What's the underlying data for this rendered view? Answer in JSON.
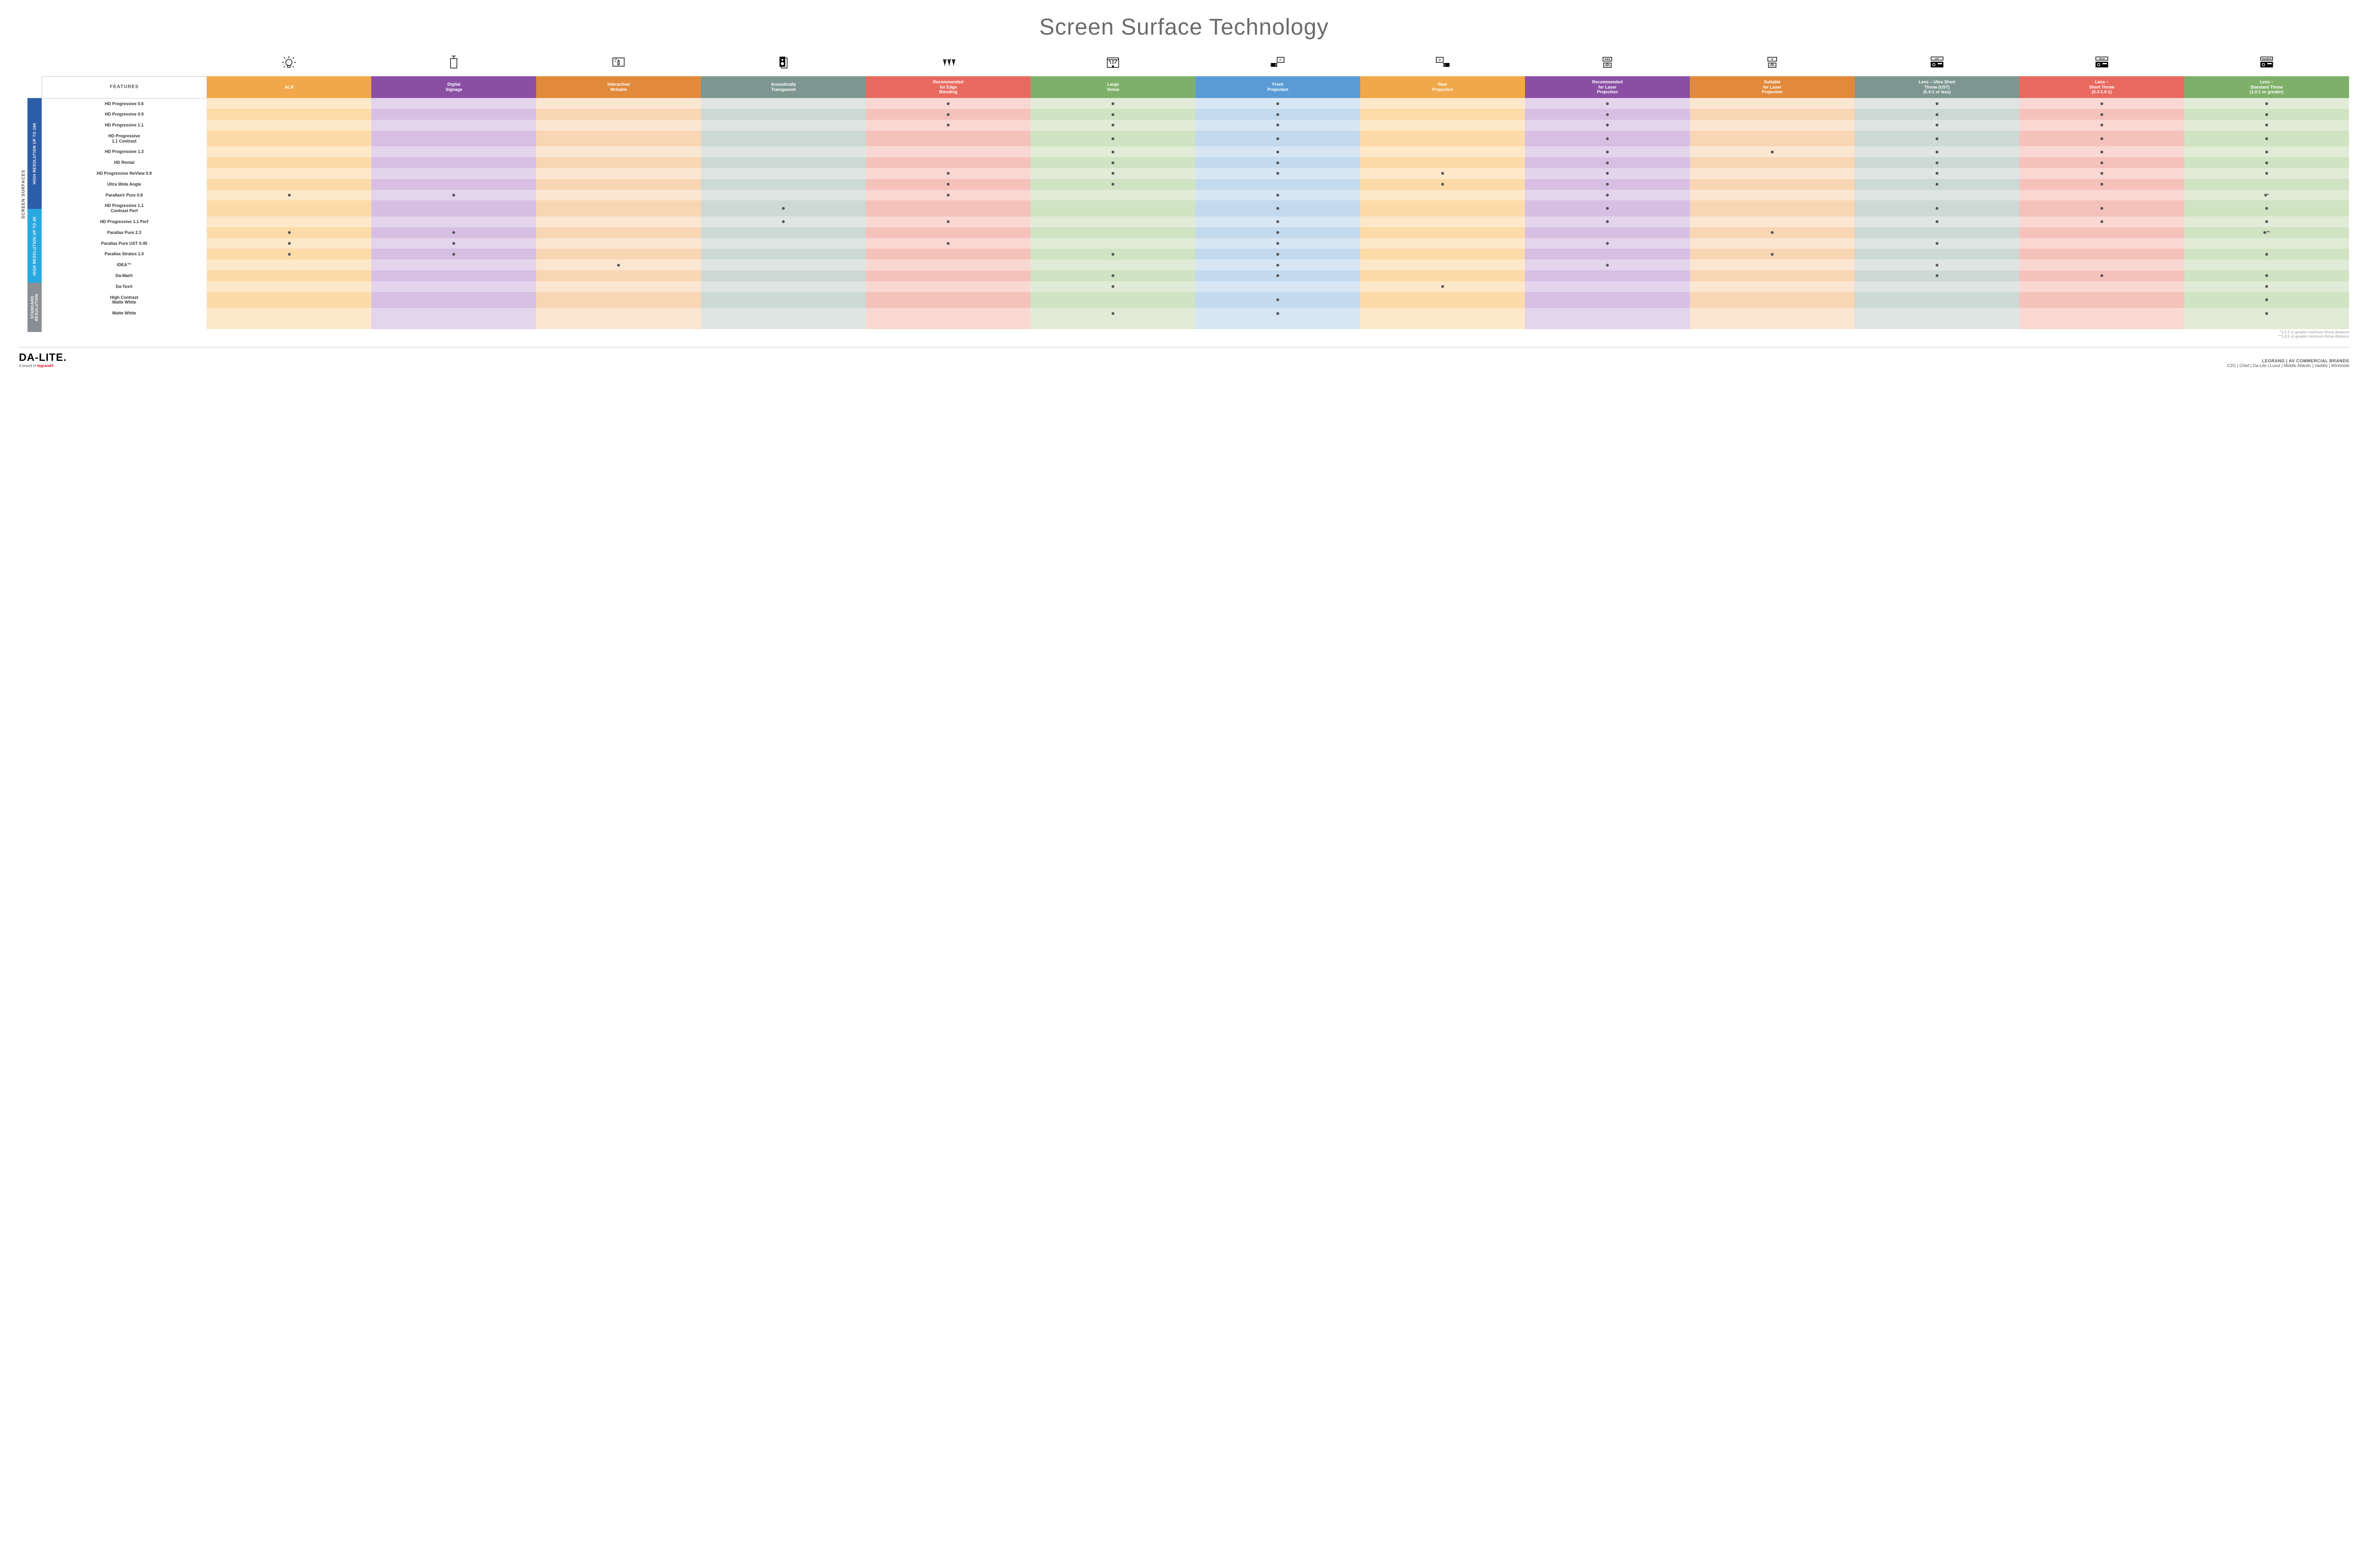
{
  "title": "Screen Surface Technology",
  "verticalLabel": "SCREEN SURFACES",
  "columns": [
    {
      "key": "features",
      "label": "FEATURES",
      "color": "#ffffff",
      "text": "#555",
      "lightA": "#ffffff",
      "lightB": "#ffffff",
      "icon": null
    },
    {
      "key": "alr",
      "label": "ALR",
      "color": "#f0a84a",
      "lightA": "#fde8c9",
      "lightB": "#fcdba8",
      "icon": "bulb"
    },
    {
      "key": "signage",
      "label": "Digital\nSignage",
      "color": "#8a4fa3",
      "lightA": "#e4d4ec",
      "lightB": "#d7bfe3",
      "icon": "signage"
    },
    {
      "key": "interactive",
      "label": "Interactive/\nWritable",
      "color": "#e18a3b",
      "lightA": "#fbe6d2",
      "lightB": "#f8d6b4",
      "icon": "touch"
    },
    {
      "key": "acoustic",
      "label": "Acoustically\nTransparent",
      "color": "#7e9690",
      "lightA": "#dee5e3",
      "lightB": "#cdd9d5",
      "icon": "speaker"
    },
    {
      "key": "edge",
      "label": "Recommended\nfor Edge\nBlending",
      "color": "#e86a5f",
      "lightA": "#f9d8d4",
      "lightB": "#f5c2bb",
      "icon": "blend"
    },
    {
      "key": "venue",
      "label": "Large\nVenue",
      "color": "#7fb069",
      "lightA": "#e0ecd7",
      "lightB": "#d0e3c2",
      "icon": "venue"
    },
    {
      "key": "front",
      "label": "Front\nProjection",
      "color": "#5b9bd5",
      "lightA": "#d8e6f4",
      "lightB": "#c3d9ee",
      "icon": "front"
    },
    {
      "key": "rear",
      "label": "Rear\nProjection",
      "color": "#f0a84a",
      "lightA": "#fde8c9",
      "lightB": "#fcdba8",
      "icon": "rear"
    },
    {
      "key": "reclaser",
      "label": "Recommended\nfor Laser\nProjection",
      "color": "#8a4fa3",
      "lightA": "#e4d4ec",
      "lightB": "#d7bfe3",
      "icon": "laser3"
    },
    {
      "key": "suitlaser",
      "label": "Suitable\nfor Laser\nProjection",
      "color": "#e18a3b",
      "lightA": "#fbe6d2",
      "lightB": "#f8d6b4",
      "icon": "laser1"
    },
    {
      "key": "ust",
      "label": "Lens – Ultra Short\nThrow (UST)\n(0.4:1 or less)",
      "color": "#7e9690",
      "lightA": "#dee5e3",
      "lightB": "#cdd9d5",
      "icon": "ust",
      "badge": "UST"
    },
    {
      "key": "short",
      "label": "Lens –\nShort Throw\n(0.4-1.0:1)",
      "color": "#e86a5f",
      "lightA": "#f9d8d4",
      "lightB": "#f5c2bb",
      "icon": "short",
      "badge": "Short"
    },
    {
      "key": "std",
      "label": "Lens –\nStandard Throw\n(1.0:1 or greater)",
      "color": "#7fb069",
      "lightA": "#e0ecd7",
      "lightB": "#d0e3c2",
      "icon": "standard",
      "badge": "Standard"
    }
  ],
  "groups": [
    {
      "label": "HIGH RESOLUTION UP TO 16K",
      "color": "#2f5da8",
      "rows": [
        {
          "label": "HD Progressive 0.6",
          "cells": {
            "edge": "•",
            "venue": "•",
            "front": "•",
            "reclaser": "•",
            "ust": "•",
            "short": "•",
            "std": "•"
          }
        },
        {
          "label": "HD Progressive 0.9",
          "cells": {
            "edge": "•",
            "venue": "•",
            "front": "•",
            "reclaser": "•",
            "ust": "•",
            "short": "•",
            "std": "•"
          }
        },
        {
          "label": "HD Progressive 1.1",
          "cells": {
            "edge": "•",
            "venue": "•",
            "front": "•",
            "reclaser": "•",
            "ust": "•",
            "short": "•",
            "std": "•"
          }
        },
        {
          "label": "HD Progressive\n1.1 Contrast",
          "cells": {
            "venue": "•",
            "front": "•",
            "reclaser": "•",
            "ust": "•",
            "short": "•",
            "std": "•"
          }
        },
        {
          "label": "HD Progressive 1.3",
          "cells": {
            "venue": "•",
            "front": "•",
            "reclaser": "•",
            "suitlaser": "•",
            "ust": "•",
            "short": "•",
            "std": "•"
          }
        },
        {
          "label": "HD Rental",
          "cells": {
            "venue": "•",
            "front": "•",
            "reclaser": "•",
            "ust": "•",
            "short": "•",
            "std": "•"
          }
        },
        {
          "label": "HD Progressive ReView 0.9",
          "cells": {
            "edge": "•",
            "venue": "•",
            "front": "•",
            "rear": "•",
            "reclaser": "•",
            "ust": "•",
            "short": "•",
            "std": "•"
          }
        },
        {
          "label": "Ultra Wide Angle",
          "cells": {
            "edge": "•",
            "venue": "•",
            "rear": "•",
            "reclaser": "•",
            "ust": "•",
            "short": "•"
          }
        },
        {
          "label": "Parallax® Pure 0.8",
          "cells": {
            "alr": "•",
            "signage": "•",
            "edge": "•",
            "front": "•",
            "reclaser": "•",
            "std": "•*"
          }
        }
      ]
    },
    {
      "label": "HIGH RESOLUTION UP TO 4K",
      "color": "#2aa9e0",
      "rows": [
        {
          "label": "HD Progressive 1.1\nContrast Perf",
          "cells": {
            "acoustic": "•",
            "front": "•",
            "reclaser": "•",
            "ust": "•",
            "short": "•",
            "std": "•"
          }
        },
        {
          "label": "HD Progressive 1.1 Perf",
          "cells": {
            "acoustic": "•",
            "edge": "•",
            "front": "•",
            "reclaser": "•",
            "ust": "•",
            "short": "•",
            "std": "•"
          }
        },
        {
          "label": "Parallax Pure 2.3",
          "cells": {
            "alr": "•",
            "signage": "•",
            "front": "•",
            "suitlaser": "•",
            "std": "•**"
          }
        },
        {
          "label": "Parallax Pure UST 0.45",
          "cells": {
            "alr": "•",
            "signage": "•",
            "edge": "•",
            "front": "•",
            "reclaser": "•",
            "ust": "•"
          }
        },
        {
          "label": "Parallax Stratos 1.0",
          "cells": {
            "alr": "•",
            "signage": "•",
            "venue": "•",
            "front": "•",
            "suitlaser": "•",
            "std": "•"
          }
        },
        {
          "label": "IDEA™",
          "cells": {
            "interactive": "•",
            "front": "•",
            "reclaser": "•",
            "ust": "•"
          }
        }
      ]
    },
    {
      "label": "STANDARD\nRESOLUTION",
      "color": "#8a8f94",
      "rows": [
        {
          "label": "Da-Mat®",
          "cells": {
            "venue": "•",
            "front": "•",
            "ust": "•",
            "short": "•",
            "std": "•"
          }
        },
        {
          "label": "Da-Tex®",
          "cells": {
            "venue": "•",
            "rear": "•",
            "std": "•"
          }
        },
        {
          "label": "High Contrast\nMatte White",
          "cells": {
            "front": "•",
            "std": "•"
          }
        },
        {
          "label": "Matte White",
          "cells": {
            "venue": "•",
            "front": "•",
            "std": "•"
          }
        }
      ]
    }
  ],
  "footnotes": [
    "*1.5:1 or greater minimum throw distance",
    "**1.8:1 or greater minimum throw distance"
  ],
  "footer": {
    "brand": "DA-LITE.",
    "brandSub": "A brand of ",
    "brandSubRed": "legrand®",
    "rightTop": "LEGRAND | AV COMMERCIAL BRANDS",
    "rightBottom": "C2G  |  Chief  |  Da-Lite  |  Luxul  |  Middle Atlantic  |  Vaddio  |  Wiremold"
  }
}
